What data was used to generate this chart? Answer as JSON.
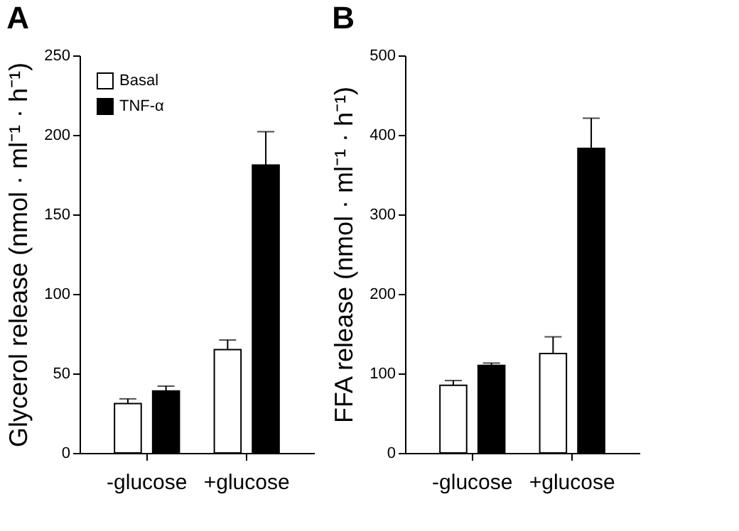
{
  "chart_data": [
    {
      "type": "bar",
      "title": "A",
      "ylabel": "Glycerol release (nmol · ml⁻¹ · h⁻¹)",
      "categories": [
        "-glucose",
        "+glucose"
      ],
      "series": [
        {
          "name": "Basal",
          "color": "#ffffff",
          "values": [
            31,
            65
          ],
          "errors": [
            [
              31,
              34
            ],
            [
              65,
              71
            ]
          ]
        },
        {
          "name": "TNF-α",
          "color": "#000000",
          "values": [
            39,
            181
          ],
          "errors": [
            [
              39,
              42
            ],
            [
              181,
              202
            ]
          ]
        }
      ],
      "ylim": [
        0,
        250
      ],
      "yticks": [
        0,
        50,
        100,
        150,
        200,
        250
      ],
      "legend": "top left"
    },
    {
      "type": "bar",
      "title": "B",
      "ylabel": "FFA release (nmol · ml⁻¹ · h⁻¹)",
      "categories": [
        "-glucose",
        "+glucose"
      ],
      "series": [
        {
          "name": "Basal",
          "color": "#ffffff",
          "values": [
            85,
            125
          ],
          "errors": [
            [
              85,
              91
            ],
            [
              125,
              146
            ]
          ]
        },
        {
          "name": "TNF-α",
          "color": "#000000",
          "values": [
            110,
            383
          ],
          "errors": [
            [
              110,
              113
            ],
            [
              383,
              421
            ]
          ]
        }
      ],
      "ylim": [
        0,
        500
      ],
      "yticks": [
        0,
        100,
        200,
        300,
        400,
        500
      ],
      "legend": "top left"
    }
  ]
}
